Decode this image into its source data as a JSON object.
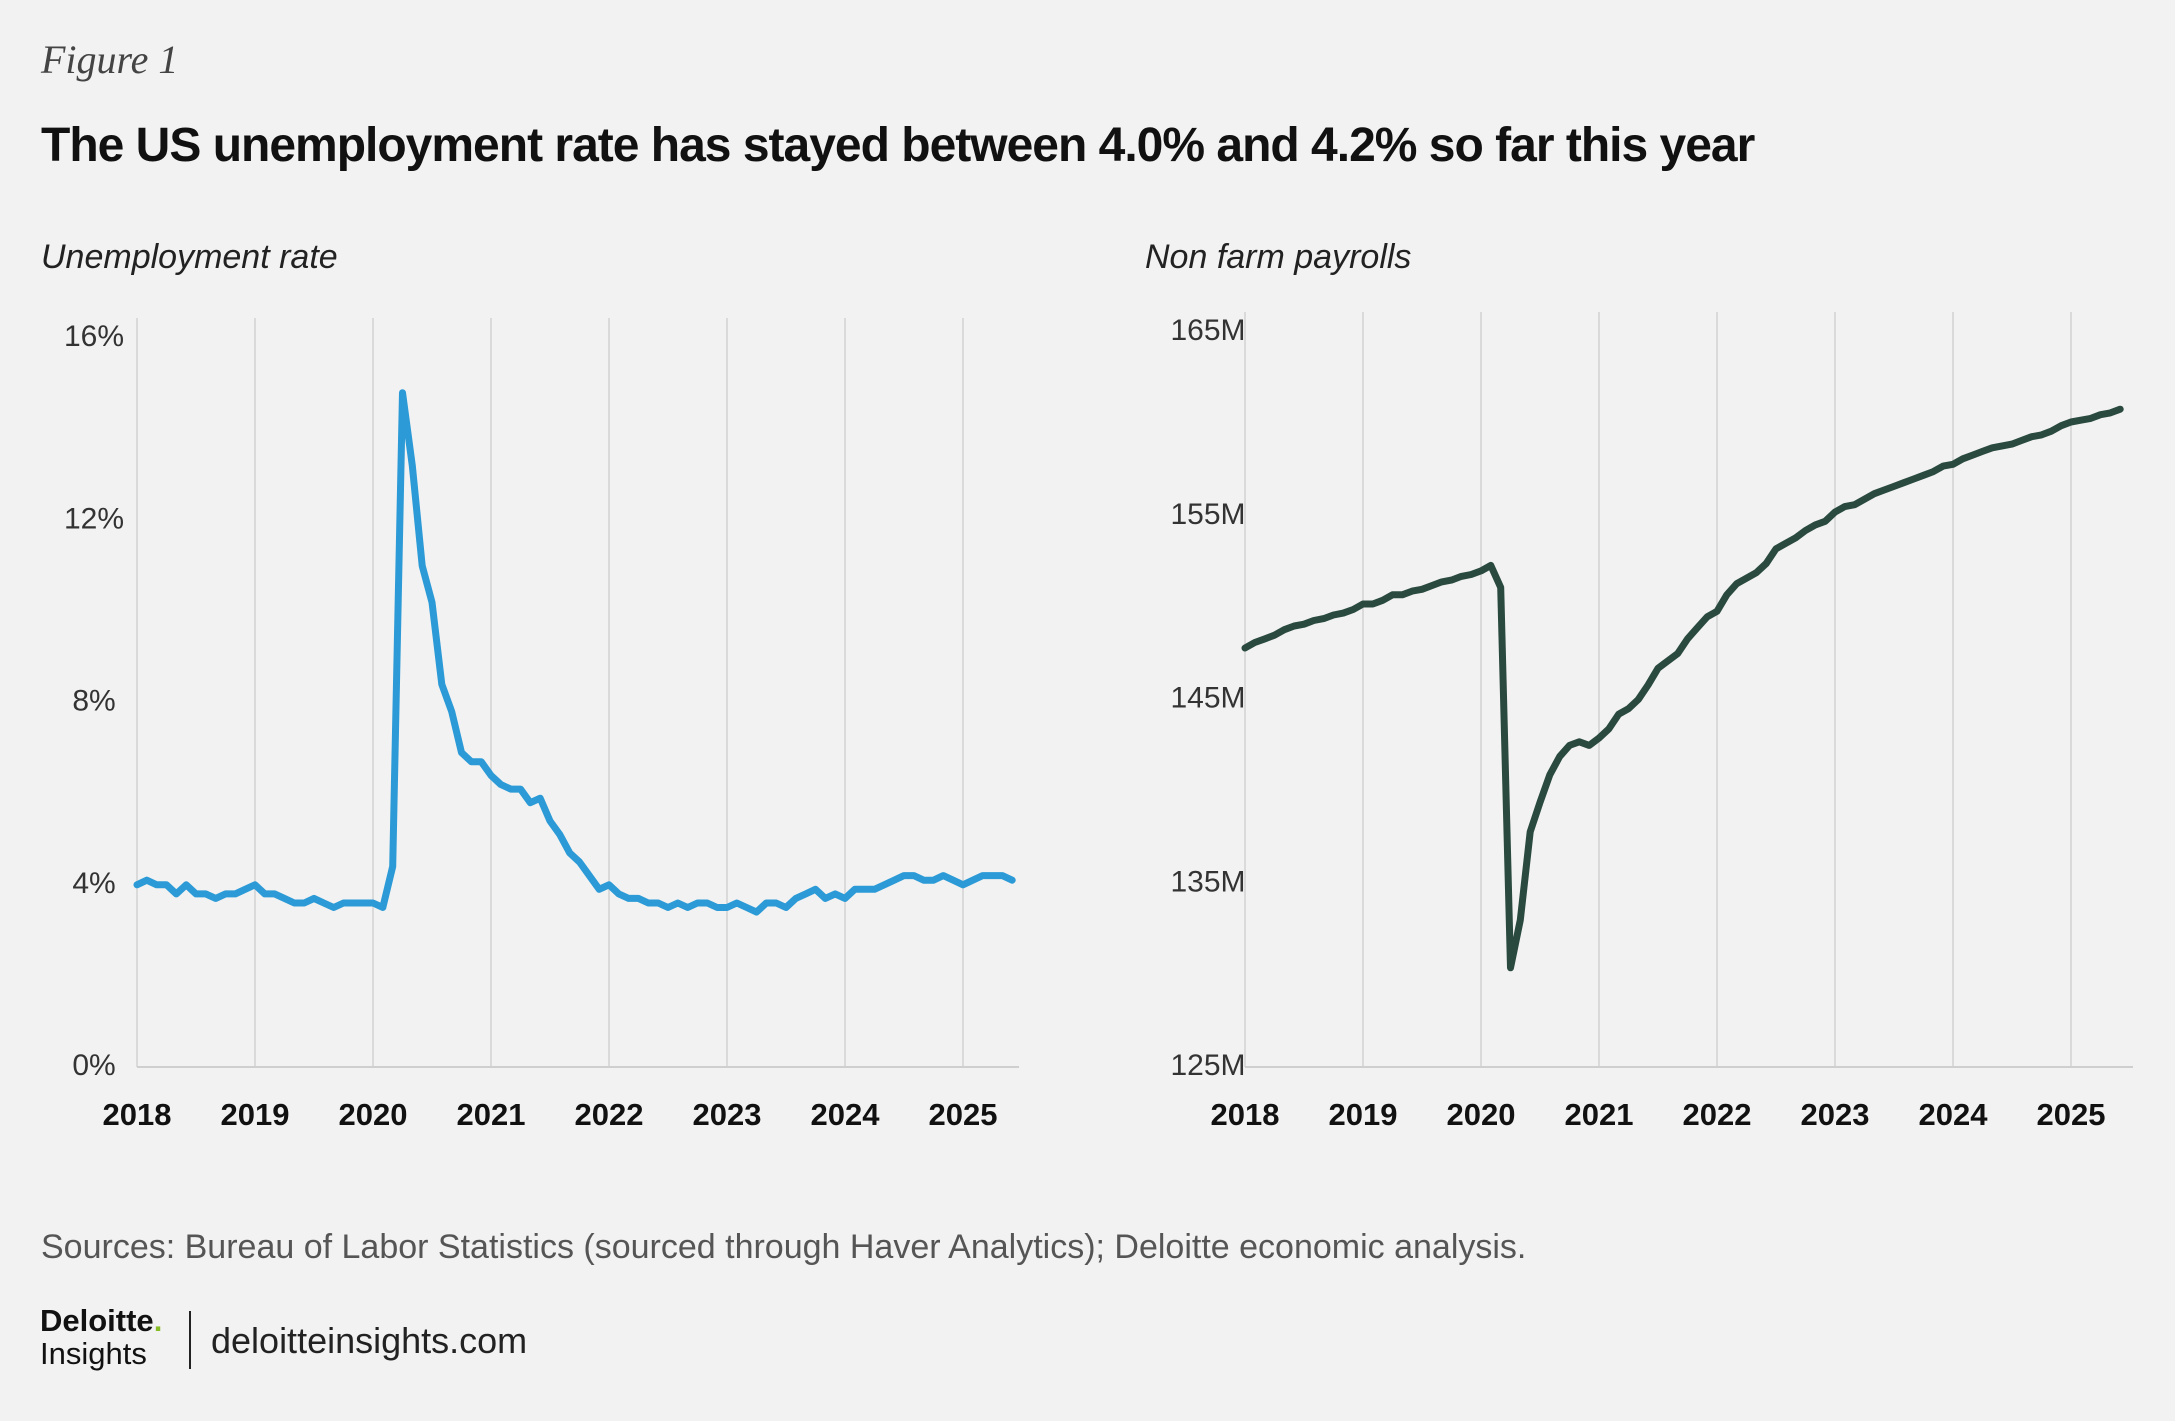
{
  "header": {
    "figure_label": "Figure 1",
    "title": "The US unemployment rate has stayed between 4.0% and 4.2% so far this year"
  },
  "colors": {
    "unemployment_line": "#2b9ad6",
    "payrolls_line": "#2a4a3f",
    "grid": "#dadada",
    "axis": "#cfcfcf",
    "brand_green": "#86bc25"
  },
  "chart_data": [
    {
      "type": "line",
      "title": "Unemployment rate",
      "xlabel": "",
      "ylabel": "",
      "x_ticks": [
        "2018",
        "2019",
        "2020",
        "2021",
        "2022",
        "2023",
        "2024",
        "2025"
      ],
      "y_ticks": [
        "0%",
        "4%",
        "8%",
        "12%",
        "16%"
      ],
      "ylim": [
        0,
        16
      ],
      "xlim": [
        "2018-01",
        "2025-06"
      ],
      "grid": "vertical at year ticks",
      "series": [
        {
          "color": "#2b9ad6",
          "x": [
            "2018-01",
            "2018-02",
            "2018-03",
            "2018-04",
            "2018-05",
            "2018-06",
            "2018-07",
            "2018-08",
            "2018-09",
            "2018-10",
            "2018-11",
            "2018-12",
            "2019-01",
            "2019-02",
            "2019-03",
            "2019-04",
            "2019-05",
            "2019-06",
            "2019-07",
            "2019-08",
            "2019-09",
            "2019-10",
            "2019-11",
            "2019-12",
            "2020-01",
            "2020-02",
            "2020-03",
            "2020-04",
            "2020-05",
            "2020-06",
            "2020-07",
            "2020-08",
            "2020-09",
            "2020-10",
            "2020-11",
            "2020-12",
            "2021-01",
            "2021-02",
            "2021-03",
            "2021-04",
            "2021-05",
            "2021-06",
            "2021-07",
            "2021-08",
            "2021-09",
            "2021-10",
            "2021-11",
            "2021-12",
            "2022-01",
            "2022-02",
            "2022-03",
            "2022-04",
            "2022-05",
            "2022-06",
            "2022-07",
            "2022-08",
            "2022-09",
            "2022-10",
            "2022-11",
            "2022-12",
            "2023-01",
            "2023-02",
            "2023-03",
            "2023-04",
            "2023-05",
            "2023-06",
            "2023-07",
            "2023-08",
            "2023-09",
            "2023-10",
            "2023-11",
            "2023-12",
            "2024-01",
            "2024-02",
            "2024-03",
            "2024-04",
            "2024-05",
            "2024-06",
            "2024-07",
            "2024-08",
            "2024-09",
            "2024-10",
            "2024-11",
            "2024-12",
            "2025-01",
            "2025-02",
            "2025-03",
            "2025-04",
            "2025-05",
            "2025-06"
          ],
          "values": [
            4.0,
            4.1,
            4.0,
            4.0,
            3.8,
            4.0,
            3.8,
            3.8,
            3.7,
            3.8,
            3.8,
            3.9,
            4.0,
            3.8,
            3.8,
            3.7,
            3.6,
            3.6,
            3.7,
            3.6,
            3.5,
            3.6,
            3.6,
            3.6,
            3.6,
            3.5,
            4.4,
            14.8,
            13.2,
            11.0,
            10.2,
            8.4,
            7.8,
            6.9,
            6.7,
            6.7,
            6.4,
            6.2,
            6.1,
            6.1,
            5.8,
            5.9,
            5.4,
            5.1,
            4.7,
            4.5,
            4.2,
            3.9,
            4.0,
            3.8,
            3.7,
            3.7,
            3.6,
            3.6,
            3.5,
            3.6,
            3.5,
            3.6,
            3.6,
            3.5,
            3.5,
            3.6,
            3.5,
            3.4,
            3.6,
            3.6,
            3.5,
            3.7,
            3.8,
            3.9,
            3.7,
            3.8,
            3.7,
            3.9,
            3.9,
            3.9,
            4.0,
            4.1,
            4.2,
            4.2,
            4.1,
            4.1,
            4.2,
            4.1,
            4.0,
            4.1,
            4.2,
            4.2,
            4.2,
            4.1
          ]
        }
      ]
    },
    {
      "type": "line",
      "title": "Non farm payrolls",
      "xlabel": "",
      "ylabel": "",
      "x_ticks": [
        "2018",
        "2019",
        "2020",
        "2021",
        "2022",
        "2023",
        "2024",
        "2025"
      ],
      "y_ticks": [
        "125M",
        "135M",
        "145M",
        "155M",
        "165M"
      ],
      "ylim": [
        125,
        165
      ],
      "unit": "millions",
      "xlim": [
        "2018-01",
        "2025-06"
      ],
      "grid": "vertical at year ticks",
      "series": [
        {
          "color": "#2a4a3f",
          "x": [
            "2018-01",
            "2018-02",
            "2018-03",
            "2018-04",
            "2018-05",
            "2018-06",
            "2018-07",
            "2018-08",
            "2018-09",
            "2018-10",
            "2018-11",
            "2018-12",
            "2019-01",
            "2019-02",
            "2019-03",
            "2019-04",
            "2019-05",
            "2019-06",
            "2019-07",
            "2019-08",
            "2019-09",
            "2019-10",
            "2019-11",
            "2019-12",
            "2020-01",
            "2020-02",
            "2020-03",
            "2020-04",
            "2020-05",
            "2020-06",
            "2020-07",
            "2020-08",
            "2020-09",
            "2020-10",
            "2020-11",
            "2020-12",
            "2021-01",
            "2021-02",
            "2021-03",
            "2021-04",
            "2021-05",
            "2021-06",
            "2021-07",
            "2021-08",
            "2021-09",
            "2021-10",
            "2021-11",
            "2021-12",
            "2022-01",
            "2022-02",
            "2022-03",
            "2022-04",
            "2022-05",
            "2022-06",
            "2022-07",
            "2022-08",
            "2022-09",
            "2022-10",
            "2022-11",
            "2022-12",
            "2023-01",
            "2023-02",
            "2023-03",
            "2023-04",
            "2023-05",
            "2023-06",
            "2023-07",
            "2023-08",
            "2023-09",
            "2023-10",
            "2023-11",
            "2023-12",
            "2024-01",
            "2024-02",
            "2024-03",
            "2024-04",
            "2024-05",
            "2024-06",
            "2024-07",
            "2024-08",
            "2024-09",
            "2024-10",
            "2024-11",
            "2024-12",
            "2025-01",
            "2025-02",
            "2025-03",
            "2025-04",
            "2025-05",
            "2025-06"
          ],
          "values": [
            147.8,
            148.1,
            148.3,
            148.5,
            148.8,
            149.0,
            149.1,
            149.3,
            149.4,
            149.6,
            149.7,
            149.9,
            150.2,
            150.2,
            150.4,
            150.7,
            150.7,
            150.9,
            151.0,
            151.2,
            151.4,
            151.5,
            151.7,
            151.8,
            152.0,
            152.3,
            151.1,
            130.4,
            133.0,
            137.8,
            139.4,
            140.9,
            141.9,
            142.5,
            142.7,
            142.5,
            142.9,
            143.4,
            144.2,
            144.5,
            145.0,
            145.8,
            146.7,
            147.1,
            147.5,
            148.3,
            148.9,
            149.5,
            149.8,
            150.7,
            151.3,
            151.6,
            151.9,
            152.4,
            153.2,
            153.5,
            153.8,
            154.2,
            154.5,
            154.7,
            155.2,
            155.5,
            155.6,
            155.9,
            156.2,
            156.4,
            156.6,
            156.8,
            157.0,
            157.2,
            157.4,
            157.7,
            157.8,
            158.1,
            158.3,
            158.5,
            158.7,
            158.8,
            158.9,
            159.1,
            159.3,
            159.4,
            159.6,
            159.9,
            160.1,
            160.2,
            160.3,
            160.5,
            160.6,
            160.8
          ]
        }
      ]
    }
  ],
  "footer": {
    "sources": "Sources: Bureau of Labor Statistics (sourced through Haver Analytics); Deloitte economic analysis.",
    "brand_name": "Deloitte",
    "brand_dot": ".",
    "brand_sub": "Insights",
    "url": "deloitteinsights.com"
  }
}
